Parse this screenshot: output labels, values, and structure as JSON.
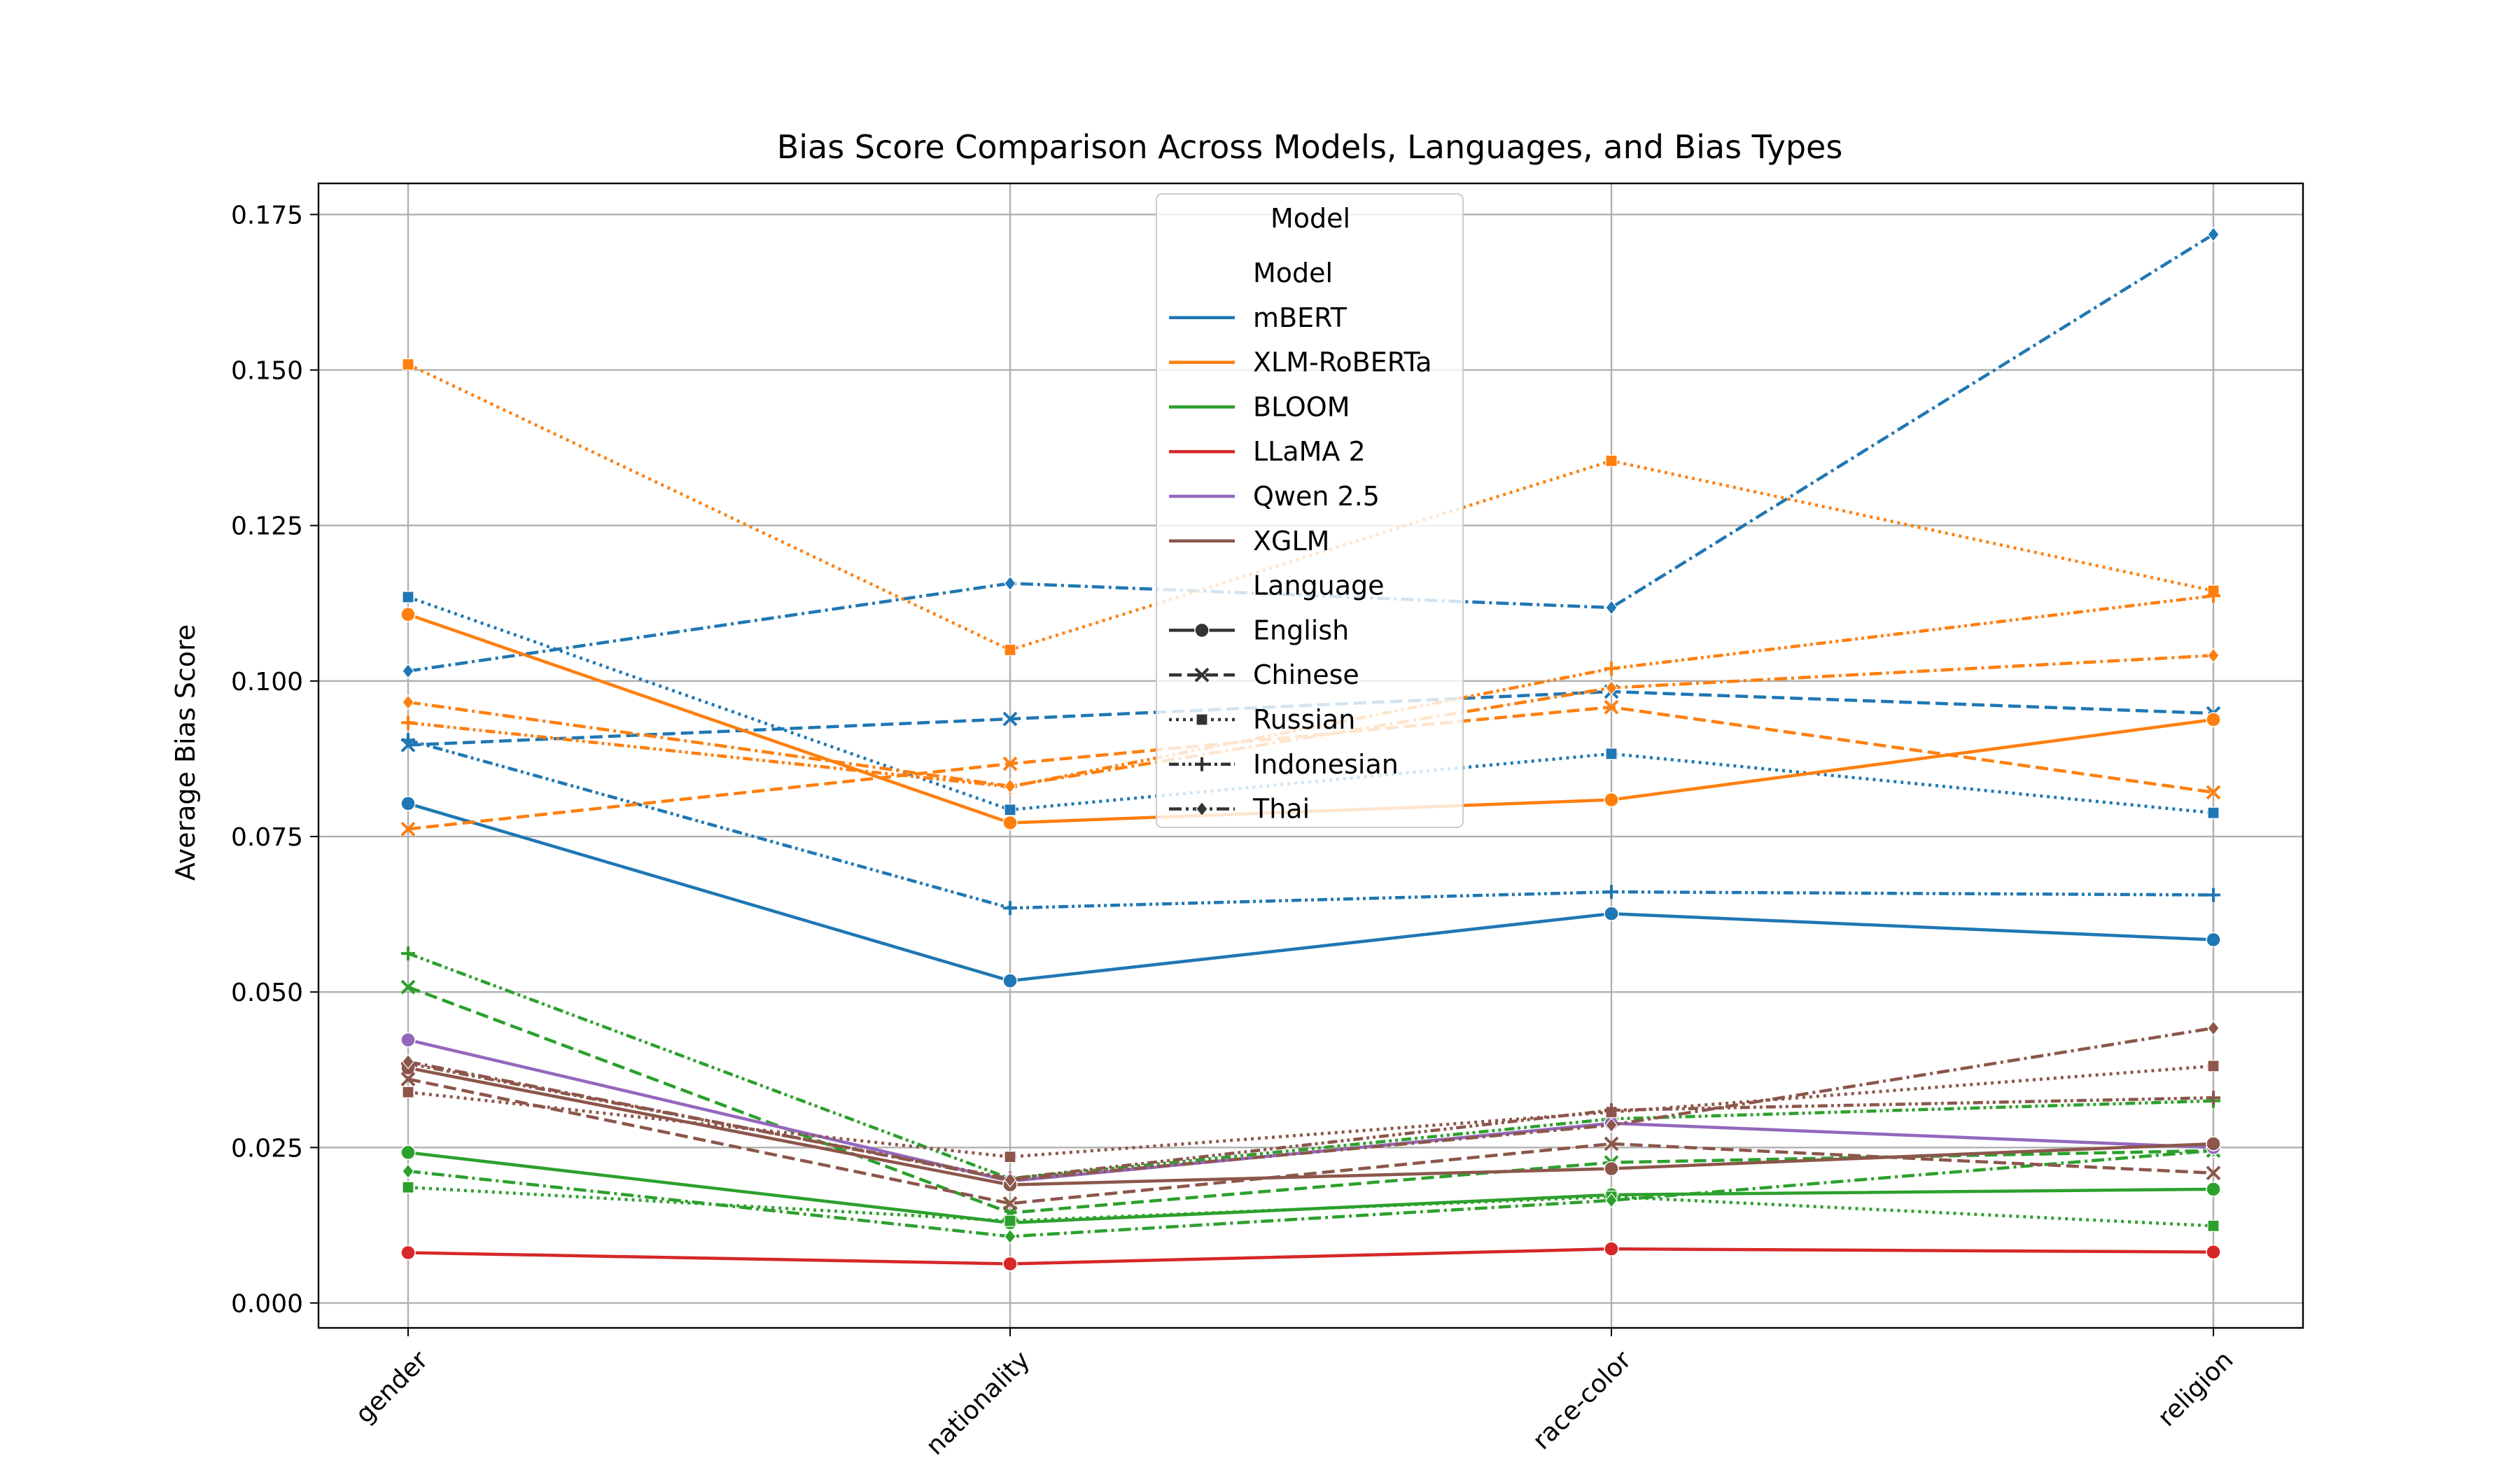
{
  "chart_data": {
    "type": "line",
    "title": "Bias Score Comparison Across Models, Languages, and Bias Types",
    "xlabel": "",
    "ylabel": "Average Bias Score",
    "categories": [
      "gender",
      "nationality",
      "race-color",
      "religion"
    ],
    "ylim": [
      -0.004,
      0.18
    ],
    "yticks": [
      0.0,
      0.025,
      0.05,
      0.075,
      0.1,
      0.125,
      0.15,
      0.175
    ],
    "ytick_labels": [
      "0.000",
      "0.025",
      "0.050",
      "0.075",
      "0.100",
      "0.125",
      "0.150",
      "0.175"
    ],
    "grid": true,
    "legend": {
      "position": "top-center",
      "title": "Model",
      "model_header": "Model",
      "language_header": "Language",
      "models": [
        {
          "name": "mBERT",
          "color": "#1f77b4"
        },
        {
          "name": "XLM-RoBERTa",
          "color": "#ff7f0e"
        },
        {
          "name": "BLOOM",
          "color": "#2ca02c"
        },
        {
          "name": "LLaMA 2",
          "color": "#d62728"
        },
        {
          "name": "Qwen 2.5",
          "color": "#9467bd"
        },
        {
          "name": "XGLM",
          "color": "#8c564b"
        }
      ],
      "languages": [
        {
          "name": "English",
          "dash": "solid",
          "marker": "circle"
        },
        {
          "name": "Chinese",
          "dash": "dashed",
          "marker": "x"
        },
        {
          "name": "Russian",
          "dash": "dotted",
          "marker": "square"
        },
        {
          "name": "Indonesian",
          "dash": "dashdotdot",
          "marker": "plus"
        },
        {
          "name": "Thai",
          "dash": "dashdot",
          "marker": "diamond"
        }
      ]
    },
    "series": [
      {
        "model": "mBERT",
        "language": "English",
        "values": [
          0.0803,
          0.0518,
          0.0626,
          0.0584
        ]
      },
      {
        "model": "mBERT",
        "language": "Chinese",
        "values": [
          0.0897,
          0.0939,
          0.0983,
          0.0948
        ]
      },
      {
        "model": "mBERT",
        "language": "Russian",
        "values": [
          0.1135,
          0.0793,
          0.0883,
          0.0788
        ]
      },
      {
        "model": "mBERT",
        "language": "Indonesian",
        "values": [
          0.0905,
          0.0635,
          0.0661,
          0.0656
        ]
      },
      {
        "model": "mBERT",
        "language": "Thai",
        "values": [
          0.1016,
          0.1157,
          0.1118,
          0.1718
        ]
      },
      {
        "model": "XLM-RoBERTa",
        "language": "English",
        "values": [
          0.1107,
          0.0772,
          0.0809,
          0.0938
        ]
      },
      {
        "model": "XLM-RoBERTa",
        "language": "Chinese",
        "values": [
          0.0762,
          0.0867,
          0.0958,
          0.0821
        ]
      },
      {
        "model": "XLM-RoBERTa",
        "language": "Russian",
        "values": [
          0.1509,
          0.105,
          0.1354,
          0.1145
        ]
      },
      {
        "model": "XLM-RoBERTa",
        "language": "Indonesian",
        "values": [
          0.0933,
          0.083,
          0.102,
          0.1137
        ]
      },
      {
        "model": "XLM-RoBERTa",
        "language": "Thai",
        "values": [
          0.0966,
          0.0831,
          0.0989,
          0.1041
        ]
      },
      {
        "model": "BLOOM",
        "language": "English",
        "values": [
          0.0242,
          0.0129,
          0.0174,
          0.0183
        ]
      },
      {
        "model": "BLOOM",
        "language": "Chinese",
        "values": [
          0.0508,
          0.0145,
          0.0226,
          0.0245
        ]
      },
      {
        "model": "BLOOM",
        "language": "Russian",
        "values": [
          0.0186,
          0.0132,
          0.0171,
          0.0124
        ]
      },
      {
        "model": "BLOOM",
        "language": "Indonesian",
        "values": [
          0.0562,
          0.02,
          0.0296,
          0.0325
        ]
      },
      {
        "model": "BLOOM",
        "language": "Thai",
        "values": [
          0.0212,
          0.0107,
          0.0165,
          0.0245
        ]
      },
      {
        "model": "LLaMA 2",
        "language": "English",
        "values": [
          0.0081,
          0.0063,
          0.0087,
          0.0082
        ]
      },
      {
        "model": "Qwen 2.5",
        "language": "English",
        "values": [
          0.0423,
          0.0196,
          0.0289,
          0.025
        ]
      },
      {
        "model": "XGLM",
        "language": "English",
        "values": [
          0.0378,
          0.019,
          0.0216,
          0.0256
        ]
      },
      {
        "model": "XGLM",
        "language": "Chinese",
        "values": [
          0.036,
          0.016,
          0.0256,
          0.0209
        ]
      },
      {
        "model": "XGLM",
        "language": "Russian",
        "values": [
          0.0339,
          0.0235,
          0.0307,
          0.0381
        ]
      },
      {
        "model": "XGLM",
        "language": "Indonesian",
        "values": [
          0.0385,
          0.02,
          0.031,
          0.033
        ]
      },
      {
        "model": "XGLM",
        "language": "Thai",
        "values": [
          0.0388,
          0.0198,
          0.0286,
          0.0442
        ]
      }
    ]
  }
}
